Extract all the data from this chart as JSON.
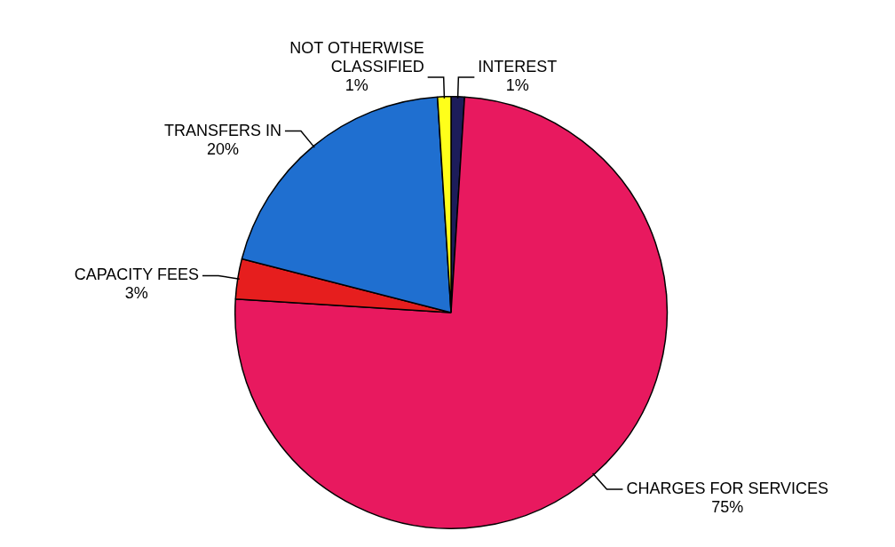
{
  "chart_data": {
    "type": "pie",
    "categories": [
      "INTEREST",
      "CHARGES FOR SERVICES",
      "CAPACITY FEES",
      "TRANSFERS IN",
      "NOT OTHERWISE CLASSIFIED"
    ],
    "values": [
      1,
      75,
      3,
      20,
      1
    ],
    "colors": [
      "#1c1c5a",
      "#e8195f",
      "#e61e1e",
      "#1f6fd0",
      "#ffff1a"
    ],
    "value_labels": [
      "1%",
      "75%",
      "3%",
      "20%",
      "1%"
    ],
    "legend": false
  }
}
